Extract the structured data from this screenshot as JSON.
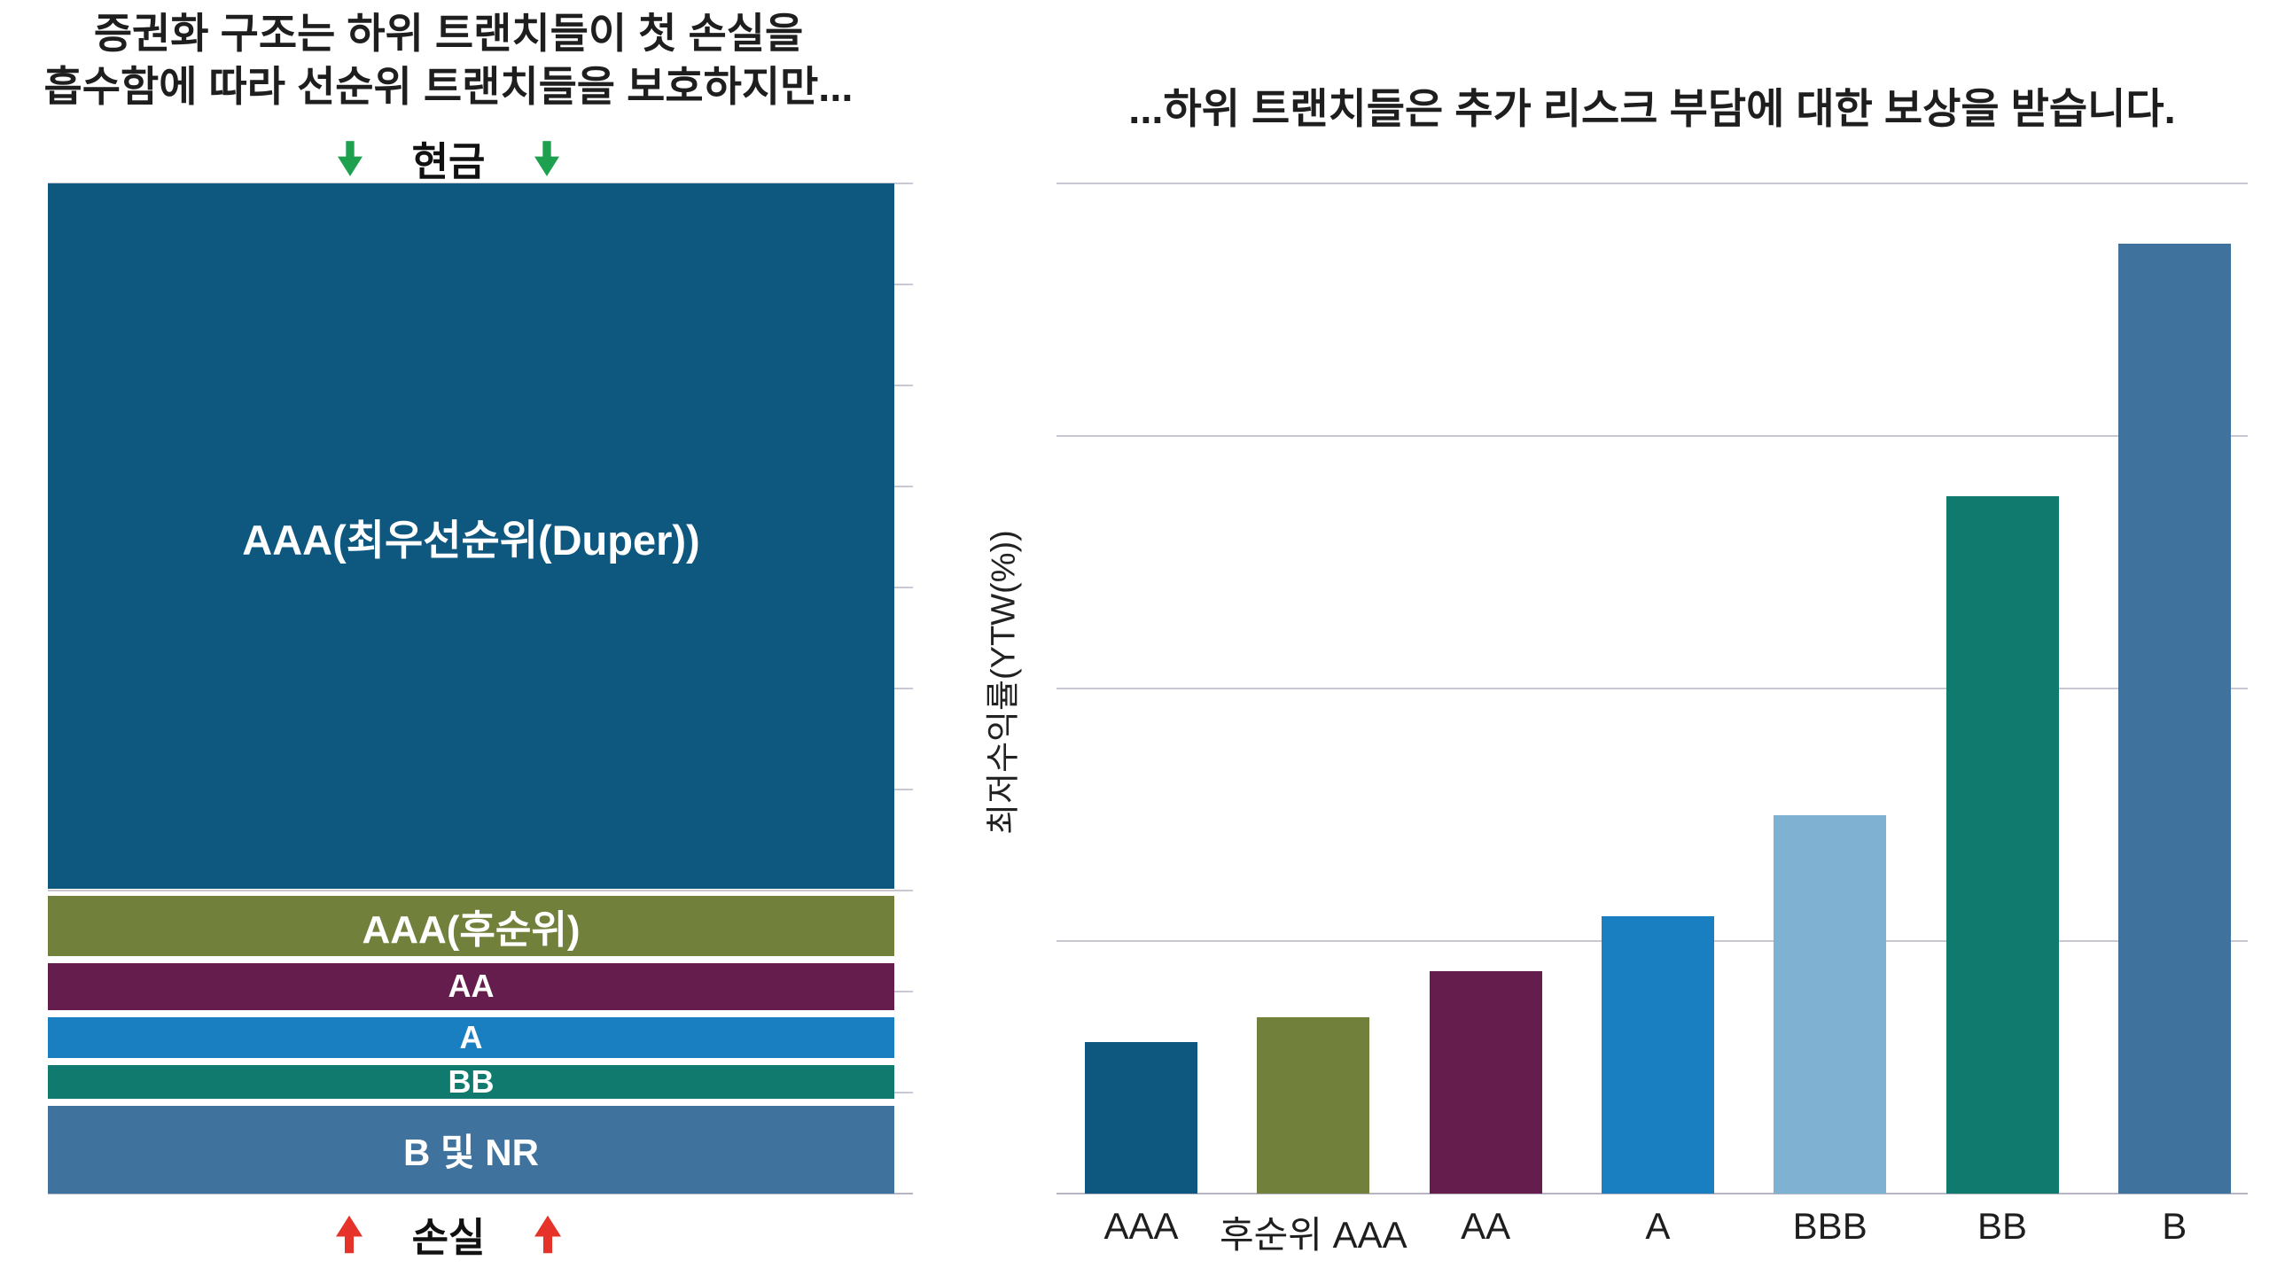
{
  "left_panel": {
    "title_line1": "증권화 구조는 하위 트랜치들이 첫 손실을",
    "title_line2": "흡수함에 따라 선순위 트랜치들을 보호하지만...",
    "cash_label": "현금",
    "loss_label": "손실"
  },
  "right_panel": {
    "title": "...하위 트랜치들은 추가 리스크 부담에 대한 보상을 받습니다.",
    "y_axis_label": "최저수익률(YTW(%))"
  },
  "icons": {
    "cash_arrows": "arrow-down-icon",
    "loss_arrows": "arrow-up-icon"
  },
  "colors": {
    "cash_arrow_green": "#1ea14f",
    "loss_arrow_red": "#e63329",
    "gridline": "#c9c7d2",
    "title_text": "#1e1e1e",
    "segment_text": "#ffffff"
  },
  "chart_data": [
    {
      "type": "bar",
      "variant": "stacked-structure",
      "title": "증권화 구조는 하위 트랜치들이 첫 손실을 흡수함에 따라 선순위 트랜치들을 보호하지만...",
      "description": "Stacked securitization capital structure; cash flows down from top, losses flow up from bottom.",
      "grid": true,
      "segments": [
        {
          "label": "AAA(최우선순위(Duper))",
          "share_pct": 69.5,
          "color": "#0e577f"
        },
        {
          "label": "AAA(후순위)",
          "share_pct": 5.9,
          "color": "#71813b"
        },
        {
          "label": "AA",
          "share_pct": 4.6,
          "color": "#651d4d"
        },
        {
          "label": "A",
          "share_pct": 4.0,
          "color": "#1a7fc1"
        },
        {
          "label": "BB",
          "share_pct": 3.4,
          "color": "#0f7a6d"
        },
        {
          "label": "B 및 NR",
          "share_pct": 8.6,
          "color": "#3f739e"
        }
      ]
    },
    {
      "type": "bar",
      "title": "...하위 트랜치들은 추가 리스크 부담에 대한 보상을 받습니다.",
      "categories": [
        "AAA",
        "후순위 AAA",
        "AA",
        "A",
        "BBB",
        "BB",
        "B"
      ],
      "values": [
        1.5,
        1.75,
        2.2,
        2.75,
        3.75,
        6.9,
        9.4
      ],
      "colors": [
        "#0e577f",
        "#71813b",
        "#651d4d",
        "#1a7fc1",
        "#7fb1d2",
        "#0f7a6d",
        "#3f739e"
      ],
      "xlabel": "",
      "ylabel": "최저수익률(YTW(%))",
      "ylim": [
        0,
        10
      ],
      "grid": true,
      "y_tick_labels_visible": false,
      "legend": "none"
    }
  ]
}
